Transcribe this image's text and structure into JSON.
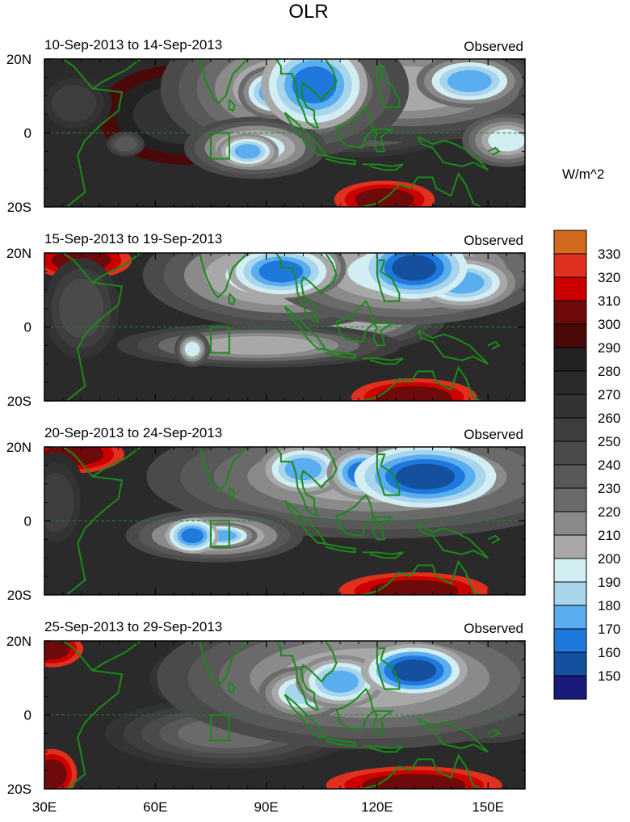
{
  "title": "OLR",
  "colorbar": {
    "unit_label": "W/m^2",
    "levels": [
      330,
      320,
      310,
      300,
      290,
      280,
      270,
      260,
      250,
      240,
      230,
      220,
      210,
      200,
      190,
      180,
      170,
      160,
      150
    ],
    "colors": [
      "#d2691e",
      "#e0301e",
      "#cc0000",
      "#6e0a0a",
      "#4a0808",
      "#222222",
      "#2b2b2b",
      "#333333",
      "#3e3e3e",
      "#4a4a4a",
      "#585858",
      "#6a6a6a",
      "#8a8a8a",
      "#a8a8a8",
      "#d2eef2",
      "#a8d4ec",
      "#5aaef0",
      "#1f78dc",
      "#15509e",
      "#1a1a7a"
    ]
  },
  "colors": {
    "coastline": "#1a8a1a",
    "equator": "#1a8a1a",
    "box": "#1a8a1a"
  },
  "panels": [
    {
      "left_label": "10-Sep-2013 to 14-Sep-2013",
      "right_label": "Observed",
      "y_ticks": [
        "20N",
        "0",
        "20S"
      ],
      "blobs": [
        {
          "lon": 95,
          "lat": 12,
          "rx": 14,
          "ry": 8,
          "v": 200
        },
        {
          "lon": 103,
          "lat": 13,
          "rx": 6,
          "ry": 5,
          "v": 160
        },
        {
          "lon": 92,
          "lat": 11,
          "rx": 4,
          "ry": 3,
          "v": 175
        },
        {
          "lon": 87,
          "lat": -4,
          "rx": 8,
          "ry": 3.5,
          "v": 195
        },
        {
          "lon": 85,
          "lat": -5,
          "rx": 3.5,
          "ry": 2,
          "v": 170
        },
        {
          "lon": 128,
          "lat": 12,
          "rx": 18,
          "ry": 6,
          "v": 205
        },
        {
          "lon": 145,
          "lat": 14,
          "rx": 6,
          "ry": 3,
          "v": 175
        },
        {
          "lon": 115,
          "lat": 3,
          "rx": 12,
          "ry": 4,
          "v": 215
        },
        {
          "lon": 155,
          "lat": -2,
          "rx": 5,
          "ry": 3,
          "v": 190
        },
        {
          "lon": 38,
          "lat": 8,
          "rx": 6,
          "ry": 5,
          "v": 250
        },
        {
          "lon": 52,
          "lat": -3,
          "rx": 3,
          "ry": 2,
          "v": 230
        },
        {
          "lon": 122,
          "lat": -18,
          "rx": 8,
          "ry": 3,
          "v": 305
        },
        {
          "lon": 68,
          "lat": 5,
          "rx": 14,
          "ry": 8,
          "v": 268
        }
      ]
    },
    {
      "left_label": "15-Sep-2013 to 19-Sep-2013",
      "right_label": "Observed",
      "y_ticks": [
        "20N",
        "0",
        "20S"
      ],
      "blobs": [
        {
          "lon": 95,
          "lat": 14,
          "rx": 16,
          "ry": 6,
          "v": 195
        },
        {
          "lon": 94,
          "lat": 15,
          "rx": 6,
          "ry": 3,
          "v": 160
        },
        {
          "lon": 102,
          "lat": 16,
          "rx": 4,
          "ry": 3,
          "v": 175
        },
        {
          "lon": 128,
          "lat": 15,
          "rx": 16,
          "ry": 6,
          "v": 190
        },
        {
          "lon": 130,
          "lat": 16,
          "rx": 6,
          "ry": 3.5,
          "v": 150
        },
        {
          "lon": 143,
          "lat": 12,
          "rx": 6,
          "ry": 3,
          "v": 170
        },
        {
          "lon": 115,
          "lat": 3,
          "rx": 10,
          "ry": 4,
          "v": 205
        },
        {
          "lon": 88,
          "lat": -5,
          "rx": 16,
          "ry": 2.5,
          "v": 205
        },
        {
          "lon": 70,
          "lat": -6,
          "rx": 2,
          "ry": 2,
          "v": 195
        },
        {
          "lon": 130,
          "lat": -19,
          "rx": 10,
          "ry": 3,
          "v": 305
        },
        {
          "lon": 40,
          "lat": 18,
          "rx": 8,
          "ry": 3,
          "v": 300
        },
        {
          "lon": 40,
          "lat": 5,
          "rx": 6,
          "ry": 8,
          "v": 245
        }
      ]
    },
    {
      "left_label": "20-Sep-2013 to 24-Sep-2013",
      "right_label": "Observed",
      "y_ticks": [
        "20N",
        "0",
        "20S"
      ],
      "blobs": [
        {
          "lon": 120,
          "lat": 12,
          "rx": 26,
          "ry": 7,
          "v": 200
        },
        {
          "lon": 133,
          "lat": 12,
          "rx": 8,
          "ry": 3.5,
          "v": 150
        },
        {
          "lon": 116,
          "lat": 13,
          "rx": 4,
          "ry": 3,
          "v": 165
        },
        {
          "lon": 100,
          "lat": 14,
          "rx": 5,
          "ry": 3,
          "v": 170
        },
        {
          "lon": 76,
          "lat": -4,
          "rx": 10,
          "ry": 3,
          "v": 195
        },
        {
          "lon": 70,
          "lat": -4,
          "rx": 3,
          "ry": 2,
          "v": 160
        },
        {
          "lon": 78,
          "lat": -4,
          "rx": 4,
          "ry": 1.5,
          "v": 175
        },
        {
          "lon": 130,
          "lat": -19,
          "rx": 12,
          "ry": 3,
          "v": 305
        },
        {
          "lon": 38,
          "lat": 18,
          "rx": 8,
          "ry": 3,
          "v": 300
        },
        {
          "lon": 33,
          "lat": 5,
          "rx": 5,
          "ry": 8,
          "v": 250
        }
      ]
    },
    {
      "left_label": "25-Sep-2013 to 29-Sep-2013",
      "right_label": "Observed",
      "y_ticks": [
        "20N",
        "0",
        "20S"
      ],
      "blobs": [
        {
          "lon": 118,
          "lat": 10,
          "rx": 24,
          "ry": 8,
          "v": 200
        },
        {
          "lon": 130,
          "lat": 12,
          "rx": 6,
          "ry": 3,
          "v": 155
        },
        {
          "lon": 110,
          "lat": 9,
          "rx": 5,
          "ry": 3,
          "v": 170
        },
        {
          "lon": 100,
          "lat": 6,
          "rx": 5,
          "ry": 3,
          "v": 180
        },
        {
          "lon": 80,
          "lat": -5,
          "rx": 14,
          "ry": 4,
          "v": 220
        },
        {
          "lon": 72,
          "lat": 10,
          "rx": 10,
          "ry": 6,
          "v": 255
        },
        {
          "lon": 150,
          "lat": 2,
          "rx": 8,
          "ry": 4,
          "v": 205
        },
        {
          "lon": 130,
          "lat": -19,
          "rx": 14,
          "ry": 3,
          "v": 300
        },
        {
          "lon": 32,
          "lat": 18,
          "rx": 5,
          "ry": 3,
          "v": 300
        },
        {
          "lon": 32,
          "lat": -16,
          "rx": 4,
          "ry": 4,
          "v": 300
        }
      ]
    }
  ],
  "chart_data": {
    "type": "heatmap",
    "title": "OLR",
    "units": "W/m^2",
    "x_ticks": [
      "30E",
      "60E",
      "90E",
      "120E",
      "150E"
    ],
    "x_range_deg_east": [
      30,
      160
    ],
    "y_range_deg_north": [
      -20,
      20
    ],
    "y_ticks": [
      "20N",
      "0",
      "20S"
    ],
    "n_panels": 4,
    "series": [
      {
        "period": "10-Sep-2013 to 14-Sep-2013",
        "tag": "Observed"
      },
      {
        "period": "15-Sep-2013 to 19-Sep-2013",
        "tag": "Observed"
      },
      {
        "period": "20-Sep-2013 to 24-Sep-2013",
        "tag": "Observed"
      },
      {
        "period": "25-Sep-2013 to 29-Sep-2013",
        "tag": "Observed"
      }
    ],
    "contour_levels": [
      150,
      160,
      170,
      180,
      190,
      200,
      210,
      220,
      230,
      240,
      250,
      260,
      270,
      280,
      290,
      300,
      310,
      320,
      330
    ],
    "region_box": {
      "lon": [
        75,
        80
      ],
      "lat": [
        -7,
        0
      ]
    }
  }
}
